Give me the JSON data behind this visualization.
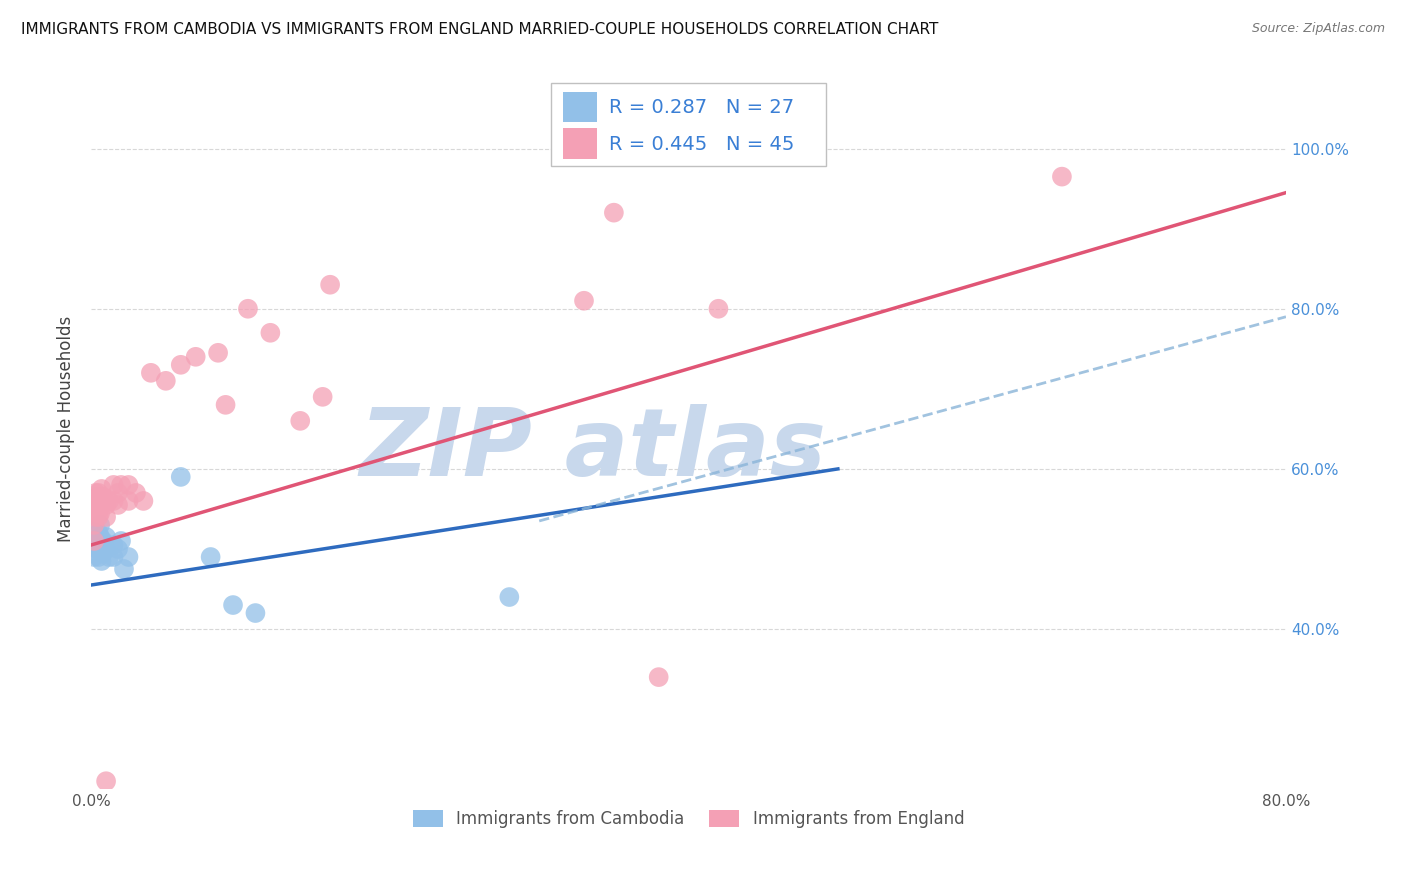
{
  "title": "IMMIGRANTS FROM CAMBODIA VS IMMIGRANTS FROM ENGLAND MARRIED-COUPLE HOUSEHOLDS CORRELATION CHART",
  "source": "Source: ZipAtlas.com",
  "ylabel": "Married-couple Households",
  "xmin": 0.0,
  "xmax": 0.8,
  "ymin": 0.2,
  "ymax": 1.1,
  "xtick_positions": [
    0.0,
    0.2,
    0.4,
    0.6,
    0.8
  ],
  "xticklabels": [
    "0.0%",
    "",
    "",
    "",
    "80.0%"
  ],
  "ytick_positions": [
    0.4,
    0.6,
    0.8,
    1.0
  ],
  "yticklabels": [
    "40.0%",
    "60.0%",
    "80.0%",
    "100.0%"
  ],
  "legend_labels": [
    "Immigrants from Cambodia",
    "Immigrants from England"
  ],
  "corr_box": {
    "cambodia_R": "0.287",
    "cambodia_N": "27",
    "england_R": "0.445",
    "england_N": "45"
  },
  "cambodia_color": "#92c0e8",
  "england_color": "#f4a0b5",
  "cambodia_line_color": "#2e6bbf",
  "england_line_color": "#e05575",
  "cambodia_dash_color": "#8ab4d8",
  "watermark": "ZIP atlas",
  "watermark_color": "#c8d8ec",
  "grid_color": "#d8d8d8",
  "grid_style": "--",
  "background_color": "#ffffff",
  "cambodia_points": [
    [
      0.002,
      0.49
    ],
    [
      0.003,
      0.51
    ],
    [
      0.004,
      0.5
    ],
    [
      0.005,
      0.52
    ],
    [
      0.005,
      0.505
    ],
    [
      0.005,
      0.49
    ],
    [
      0.006,
      0.53
    ],
    [
      0.006,
      0.515
    ],
    [
      0.007,
      0.5
    ],
    [
      0.007,
      0.485
    ],
    [
      0.008,
      0.51
    ],
    [
      0.008,
      0.495
    ],
    [
      0.009,
      0.505
    ],
    [
      0.01,
      0.515
    ],
    [
      0.01,
      0.5
    ],
    [
      0.012,
      0.49
    ],
    [
      0.015,
      0.505
    ],
    [
      0.015,
      0.49
    ],
    [
      0.018,
      0.5
    ],
    [
      0.02,
      0.51
    ],
    [
      0.022,
      0.475
    ],
    [
      0.025,
      0.49
    ],
    [
      0.06,
      0.59
    ],
    [
      0.08,
      0.49
    ],
    [
      0.095,
      0.43
    ],
    [
      0.11,
      0.42
    ],
    [
      0.28,
      0.44
    ]
  ],
  "england_points": [
    [
      0.002,
      0.55
    ],
    [
      0.002,
      0.53
    ],
    [
      0.002,
      0.51
    ],
    [
      0.003,
      0.57
    ],
    [
      0.003,
      0.55
    ],
    [
      0.003,
      0.54
    ],
    [
      0.004,
      0.565
    ],
    [
      0.004,
      0.545
    ],
    [
      0.005,
      0.57
    ],
    [
      0.005,
      0.555
    ],
    [
      0.005,
      0.54
    ],
    [
      0.006,
      0.56
    ],
    [
      0.006,
      0.545
    ],
    [
      0.007,
      0.575
    ],
    [
      0.007,
      0.555
    ],
    [
      0.008,
      0.565
    ],
    [
      0.01,
      0.555
    ],
    [
      0.01,
      0.54
    ],
    [
      0.012,
      0.56
    ],
    [
      0.015,
      0.58
    ],
    [
      0.015,
      0.56
    ],
    [
      0.018,
      0.57
    ],
    [
      0.018,
      0.555
    ],
    [
      0.02,
      0.58
    ],
    [
      0.025,
      0.58
    ],
    [
      0.025,
      0.56
    ],
    [
      0.03,
      0.57
    ],
    [
      0.035,
      0.56
    ],
    [
      0.04,
      0.72
    ],
    [
      0.05,
      0.71
    ],
    [
      0.06,
      0.73
    ],
    [
      0.07,
      0.74
    ],
    [
      0.085,
      0.745
    ],
    [
      0.09,
      0.68
    ],
    [
      0.105,
      0.8
    ],
    [
      0.12,
      0.77
    ],
    [
      0.14,
      0.66
    ],
    [
      0.155,
      0.69
    ],
    [
      0.16,
      0.83
    ],
    [
      0.33,
      0.81
    ],
    [
      0.38,
      0.34
    ],
    [
      0.65,
      0.965
    ],
    [
      0.35,
      0.92
    ],
    [
      0.42,
      0.8
    ],
    [
      0.01,
      0.21
    ]
  ],
  "cambodia_line": [
    [
      0.0,
      0.455
    ],
    [
      0.5,
      0.6
    ]
  ],
  "england_line": [
    [
      0.0,
      0.505
    ],
    [
      0.8,
      0.945
    ]
  ],
  "cambodia_dash_line": [
    [
      0.3,
      0.535
    ],
    [
      0.8,
      0.79
    ]
  ]
}
